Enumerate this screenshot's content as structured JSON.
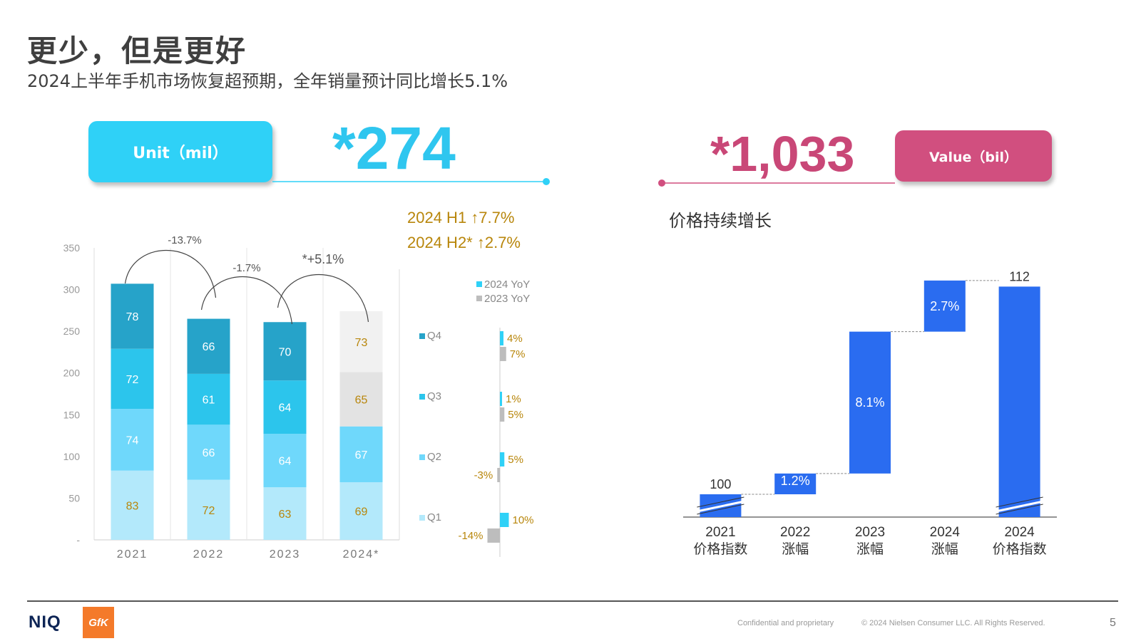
{
  "header": {
    "title": "更少，但是更好",
    "subtitle": "2024上半年手机市场恢复超预期，全年销量预计同比增长5.1%"
  },
  "kpis": {
    "unit_label": "Unit（mil）",
    "unit_value": "*274",
    "value_label": "Value（bil）",
    "value_value": "*1,033"
  },
  "half_year": {
    "h1": "2024 H1 ↑7.7%",
    "h2": "2024 H2* ↑2.7%"
  },
  "price_section_title": "价格持续增长",
  "colors": {
    "cyan": "#2fd1f7",
    "pink": "#d14f7f",
    "q1": "#b3e9fb",
    "q2": "#6fd8fb",
    "q3": "#2cc5ec",
    "q4": "#26a3c9",
    "forecast_q3": "#e3e3e3",
    "forecast_q4": "#f1f1f1",
    "gold": "#b8860b",
    "yoy2024": "#2fd1f7",
    "yoy2023": "#bdbdbd",
    "waterfall": "#2a6cf0"
  },
  "chart_data": [
    {
      "type": "bar",
      "stacked": true,
      "categories": [
        "2021",
        "2022",
        "2023",
        "2024*"
      ],
      "series": [
        {
          "name": "Q1",
          "values": [
            83,
            72,
            63,
            69
          ]
        },
        {
          "name": "Q2",
          "values": [
            74,
            66,
            64,
            67
          ]
        },
        {
          "name": "Q3",
          "values": [
            72,
            61,
            64,
            65
          ]
        },
        {
          "name": "Q4",
          "values": [
            78,
            66,
            70,
            73
          ]
        }
      ],
      "yticks": [
        "-",
        "50",
        "100",
        "150",
        "200",
        "250",
        "300",
        "350"
      ],
      "ylim": [
        0,
        350
      ],
      "annotations": [
        "-13.7%",
        "-1.7%",
        "*+5.1%"
      ]
    },
    {
      "type": "bar",
      "orientation": "horizontal",
      "categories": [
        "Q4",
        "Q3",
        "Q2",
        "Q1"
      ],
      "series": [
        {
          "name": "2024 YoY",
          "values": [
            4,
            1,
            5,
            10
          ],
          "labels": [
            "4%",
            "1%",
            "5%",
            "10%"
          ]
        },
        {
          "name": "2023 YoY",
          "values": [
            7,
            5,
            -3,
            -14
          ],
          "labels": [
            "7%",
            "5%",
            "-3%",
            "-14%"
          ]
        }
      ]
    },
    {
      "type": "bar",
      "variant": "waterfall",
      "categories": [
        [
          "2021",
          "价格指数"
        ],
        [
          "2022",
          "涨幅"
        ],
        [
          "2023",
          "涨幅"
        ],
        [
          "2024",
          "涨幅"
        ],
        [
          "2024",
          "价格指数"
        ]
      ],
      "values": [
        100,
        1.2,
        8.1,
        2.7,
        112
      ],
      "labels": [
        "100",
        "1.2%",
        "8.1%",
        "2.7%",
        "112"
      ]
    }
  ],
  "footer": {
    "brand": "NIQ",
    "partner": "GfK",
    "confidential": "Confidential and proprietary",
    "copyright": "© 2024 Nielsen Consumer LLC. All Rights Reserved.",
    "page": "5"
  }
}
